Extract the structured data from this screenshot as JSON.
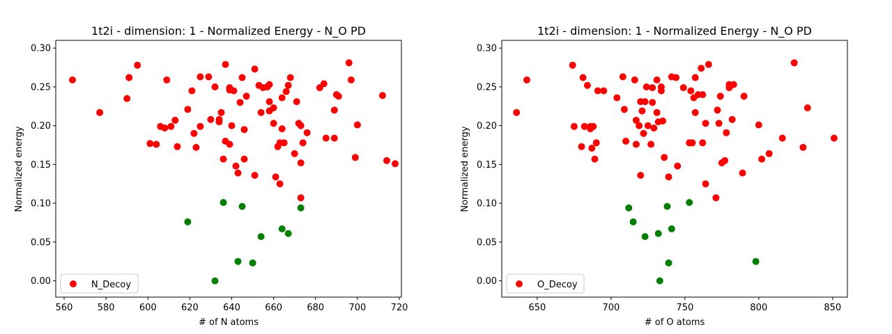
{
  "chart_data": [
    {
      "type": "scatter",
      "title": "1t2i - dimension: 1 - Normalized Energy - N_O PD",
      "xlabel": "# of N atoms",
      "ylabel": "Normalized energy",
      "xlim": [
        556,
        721
      ],
      "ylim": [
        -0.021,
        0.31
      ],
      "xticks": [
        560,
        580,
        600,
        620,
        640,
        660,
        680,
        700,
        720
      ],
      "yticks": [
        0.0,
        0.05,
        0.1,
        0.15,
        0.2,
        0.25,
        0.3
      ],
      "xtick_labels": [
        "560",
        "580",
        "600",
        "620",
        "640",
        "660",
        "680",
        "700",
        "720"
      ],
      "ytick_labels": [
        "0.00",
        "0.05",
        "0.10",
        "0.15",
        "0.20",
        "0.25",
        "0.30"
      ],
      "grid": false,
      "legend": "lower-left",
      "series": [
        {
          "name": "N_Decoy",
          "color": "#ff0000",
          "points": [
            [
              564,
              0.259
            ],
            [
              577,
              0.217
            ],
            [
              590,
              0.235
            ],
            [
              591,
              0.262
            ],
            [
              591,
              0.262
            ],
            [
              595,
              0.278
            ],
            [
              601,
              0.177
            ],
            [
              604,
              0.176
            ],
            [
              606,
              0.199
            ],
            [
              608,
              0.197
            ],
            [
              609,
              0.259
            ],
            [
              611,
              0.199
            ],
            [
              613,
              0.207
            ],
            [
              614,
              0.173
            ],
            [
              619,
              0.221
            ],
            [
              621,
              0.245
            ],
            [
              622,
              0.19
            ],
            [
              623,
              0.172
            ],
            [
              625,
              0.199
            ],
            [
              625,
              0.263
            ],
            [
              629,
              0.263
            ],
            [
              630,
              0.208
            ],
            [
              632,
              0.25
            ],
            [
              634,
              0.205
            ],
            [
              634,
              0.208
            ],
            [
              635,
              0.217
            ],
            [
              636,
              0.157
            ],
            [
              637,
              0.279
            ],
            [
              637,
              0.18
            ],
            [
              639,
              0.176
            ],
            [
              639,
              0.246
            ],
            [
              639,
              0.249
            ],
            [
              640,
              0.2
            ],
            [
              641,
              0.245
            ],
            [
              642,
              0.148
            ],
            [
              643,
              0.139
            ],
            [
              644,
              0.23
            ],
            [
              645,
              0.262
            ],
            [
              646,
              0.195
            ],
            [
              646,
              0.157
            ],
            [
              647,
              0.238
            ],
            [
              651,
              0.273
            ],
            [
              651,
              0.136
            ],
            [
              653,
              0.252
            ],
            [
              654,
              0.217
            ],
            [
              655,
              0.249
            ],
            [
              657,
              0.25
            ],
            [
              658,
              0.253
            ],
            [
              658,
              0.219
            ],
            [
              658,
              0.231
            ],
            [
              660,
              0.223
            ],
            [
              660,
              0.203
            ],
            [
              661,
              0.134
            ],
            [
              662,
              0.173
            ],
            [
              663,
              0.178
            ],
            [
              663,
              0.125
            ],
            [
              664,
              0.196
            ],
            [
              664,
              0.236
            ],
            [
              665,
              0.178
            ],
            [
              666,
              0.244
            ],
            [
              667,
              0.252
            ],
            [
              668,
              0.262
            ],
            [
              670,
              0.164
            ],
            [
              671,
              0.231
            ],
            [
              672,
              0.203
            ],
            [
              673,
              0.2
            ],
            [
              673,
              0.152
            ],
            [
              673,
              0.107
            ],
            [
              674,
              0.178
            ],
            [
              676,
              0.191
            ],
            [
              682,
              0.249
            ],
            [
              684,
              0.254
            ],
            [
              685,
              0.184
            ],
            [
              689,
              0.184
            ],
            [
              689,
              0.22
            ],
            [
              690,
              0.24
            ],
            [
              691,
              0.238
            ],
            [
              696,
              0.281
            ],
            [
              697,
              0.259
            ],
            [
              699,
              0.159
            ],
            [
              700,
              0.201
            ],
            [
              712,
              0.239
            ],
            [
              714,
              0.155
            ],
            [
              718,
              0.151
            ]
          ]
        },
        {
          "name": "",
          "color": "#008000",
          "points": [
            [
              619,
              0.076
            ],
            [
              632,
              0.0
            ],
            [
              636,
              0.101
            ],
            [
              643,
              0.025
            ],
            [
              645,
              0.096
            ],
            [
              650,
              0.023
            ],
            [
              654,
              0.057
            ],
            [
              664,
              0.067
            ],
            [
              667,
              0.061
            ],
            [
              673,
              0.094
            ]
          ]
        }
      ]
    },
    {
      "type": "scatter",
      "title": "1t2i - dimension: 1 - Normalized Energy - N_O PD",
      "xlabel": "# of O atoms",
      "ylabel": "Normalized energy",
      "xlim": [
        626,
        860
      ],
      "ylim": [
        -0.021,
        0.31
      ],
      "xticks": [
        650,
        700,
        750,
        800,
        850
      ],
      "yticks": [
        0.0,
        0.05,
        0.1,
        0.15,
        0.2,
        0.25,
        0.3
      ],
      "xtick_labels": [
        "650",
        "700",
        "750",
        "800",
        "850"
      ],
      "ytick_labels": [
        "0.00",
        "0.05",
        "0.10",
        "0.15",
        "0.20",
        "0.25",
        "0.30"
      ],
      "grid": false,
      "legend": "lower-left",
      "series": [
        {
          "name": "O_Decoy",
          "color": "#ff0000",
          "points": [
            [
              636,
              0.217
            ],
            [
              643,
              0.259
            ],
            [
              674,
              0.278
            ],
            [
              675,
              0.199
            ],
            [
              680,
              0.173
            ],
            [
              681,
              0.262
            ],
            [
              682,
              0.199
            ],
            [
              684,
              0.252
            ],
            [
              686,
              0.199
            ],
            [
              686,
              0.196
            ],
            [
              687,
              0.171
            ],
            [
              688,
              0.199
            ],
            [
              689,
              0.157
            ],
            [
              690,
              0.178
            ],
            [
              691,
              0.245
            ],
            [
              695,
              0.245
            ],
            [
              704,
              0.236
            ],
            [
              708,
              0.263
            ],
            [
              709,
              0.221
            ],
            [
              710,
              0.18
            ],
            [
              716,
              0.259
            ],
            [
              717,
              0.207
            ],
            [
              717,
              0.176
            ],
            [
              719,
              0.2
            ],
            [
              720,
              0.231
            ],
            [
              720,
              0.136
            ],
            [
              721,
              0.219
            ],
            [
              722,
              0.19
            ],
            [
              723,
              0.231
            ],
            [
              724,
              0.25
            ],
            [
              725,
              0.2
            ],
            [
              727,
              0.176
            ],
            [
              728,
              0.249
            ],
            [
              728,
              0.23
            ],
            [
              729,
              0.197
            ],
            [
              731,
              0.259
            ],
            [
              731,
              0.217
            ],
            [
              732,
              0.205
            ],
            [
              734,
              0.25
            ],
            [
              734,
              0.245
            ],
            [
              735,
              0.206
            ],
            [
              736,
              0.159
            ],
            [
              739,
              0.134
            ],
            [
              741,
              0.263
            ],
            [
              744,
              0.262
            ],
            [
              745,
              0.148
            ],
            [
              749,
              0.249
            ],
            [
              753,
              0.178
            ],
            [
              754,
              0.245
            ],
            [
              755,
              0.178
            ],
            [
              756,
              0.236
            ],
            [
              757,
              0.262
            ],
            [
              757,
              0.217
            ],
            [
              759,
              0.24
            ],
            [
              761,
              0.274
            ],
            [
              762,
              0.24
            ],
            [
              762,
              0.178
            ],
            [
              764,
              0.203
            ],
            [
              764,
              0.125
            ],
            [
              766,
              0.279
            ],
            [
              771,
              0.107
            ],
            [
              772,
              0.22
            ],
            [
              773,
              0.203
            ],
            [
              774,
              0.238
            ],
            [
              775,
              0.152
            ],
            [
              777,
              0.155
            ],
            [
              778,
              0.191
            ],
            [
              780,
              0.253
            ],
            [
              780,
              0.249
            ],
            [
              782,
              0.208
            ],
            [
              783,
              0.253
            ],
            [
              789,
              0.139
            ],
            [
              790,
              0.238
            ],
            [
              800,
              0.201
            ],
            [
              802,
              0.157
            ],
            [
              807,
              0.164
            ],
            [
              816,
              0.184
            ],
            [
              824,
              0.281
            ],
            [
              830,
              0.172
            ],
            [
              833,
              0.223
            ],
            [
              851,
              0.184
            ]
          ]
        },
        {
          "name": "",
          "color": "#008000",
          "points": [
            [
              712,
              0.094
            ],
            [
              715,
              0.076
            ],
            [
              723,
              0.057
            ],
            [
              732,
              0.061
            ],
            [
              733,
              0.0
            ],
            [
              738,
              0.096
            ],
            [
              739,
              0.023
            ],
            [
              741,
              0.067
            ],
            [
              753,
              0.101
            ],
            [
              798,
              0.025
            ]
          ]
        }
      ]
    }
  ]
}
